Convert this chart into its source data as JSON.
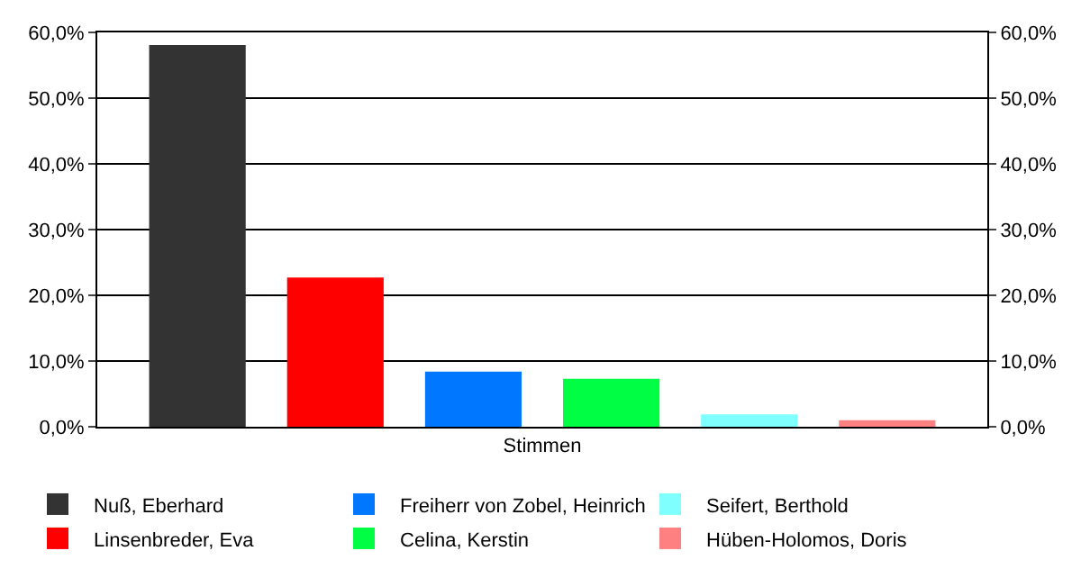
{
  "chart_data": {
    "type": "bar",
    "categories": [
      "Stimmen"
    ],
    "series": [
      {
        "name": "Nuß, Eberhard",
        "color": "#333333",
        "values": [
          58.1
        ]
      },
      {
        "name": "Linsenbreder, Eva",
        "color": "#ff0000",
        "values": [
          22.7
        ]
      },
      {
        "name": "Freiherr von Zobel, Heinrich",
        "color": "#0077ff",
        "values": [
          8.4
        ]
      },
      {
        "name": "Celina, Kerstin",
        "color": "#00ff44",
        "values": [
          7.3
        ]
      },
      {
        "name": "Seifert, Berthold",
        "color": "#80ffff",
        "values": [
          1.9
        ]
      },
      {
        "name": "Hüben-Holomos, Doris",
        "color": "#ff8080",
        "values": [
          1.0
        ]
      }
    ],
    "ylim": [
      0,
      60
    ],
    "yticks": [
      {
        "value": 0,
        "label": "0,0%"
      },
      {
        "value": 10,
        "label": "10,0%"
      },
      {
        "value": 20,
        "label": "20,0%"
      },
      {
        "value": 30,
        "label": "30,0%"
      },
      {
        "value": 40,
        "label": "40,0%"
      },
      {
        "value": 50,
        "label": "50,0%"
      },
      {
        "value": 60,
        "label": "60,0%"
      }
    ],
    "grid": "y",
    "legend": "bottom"
  }
}
